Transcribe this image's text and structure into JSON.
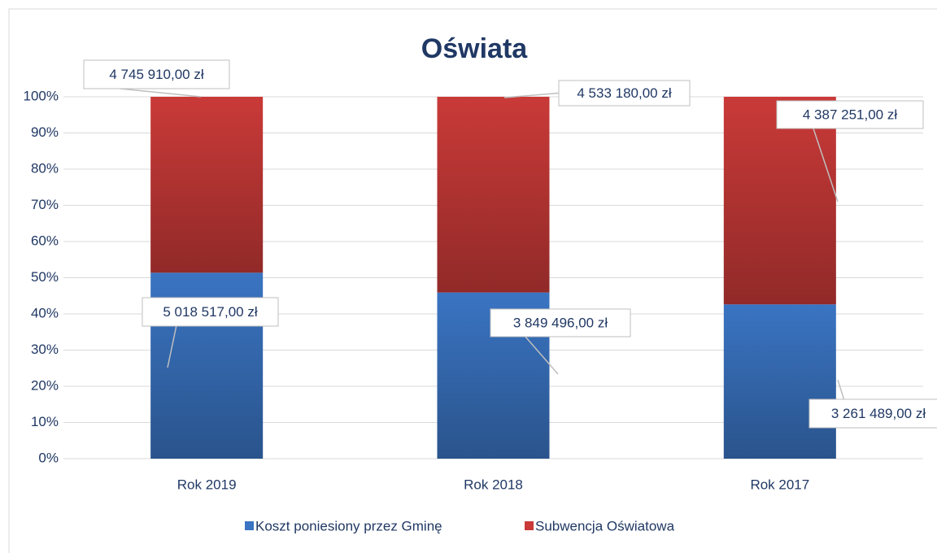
{
  "chart_data": {
    "type": "bar",
    "stacking": "percent",
    "title": "Oświata",
    "categories": [
      "Rok 2019",
      "Rok 2018",
      "Rok 2017"
    ],
    "series": [
      {
        "name": "Koszt poniesiony przez Gminę",
        "color": "#3a74c2",
        "values": [
          5018517,
          3849496,
          3261489
        ],
        "value_labels": [
          "5 018 517,00 zł",
          "3 849 496,00 zł",
          "3 261 489,00 zł"
        ]
      },
      {
        "name": "Subwencja Oświatowa",
        "color": "#c93a38",
        "values": [
          4745910,
          4533180,
          4387251
        ],
        "value_labels": [
          "4 745 910,00 zł",
          "4 533 180,00 zł",
          "4 387 251,00 zł"
        ]
      }
    ],
    "ylim": [
      0,
      100
    ],
    "yticks": [
      {
        "value": 0,
        "label": "0%"
      },
      {
        "value": 10,
        "label": "10%"
      },
      {
        "value": 20,
        "label": "20%"
      },
      {
        "value": 30,
        "label": "30%"
      },
      {
        "value": 40,
        "label": "40%"
      },
      {
        "value": 50,
        "label": "50%"
      },
      {
        "value": 60,
        "label": "60%"
      },
      {
        "value": 70,
        "label": "70%"
      },
      {
        "value": 80,
        "label": "80%"
      },
      {
        "value": 90,
        "label": "90%"
      },
      {
        "value": 100,
        "label": "100%"
      }
    ],
    "grid": true,
    "legend": "bottom"
  }
}
